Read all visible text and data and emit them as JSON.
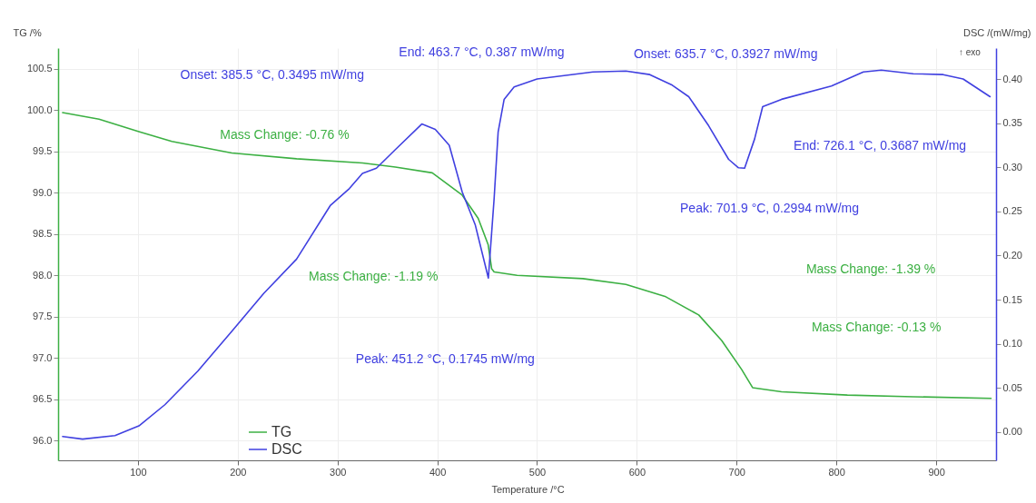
{
  "chart_data": {
    "type": "line",
    "xlabel": "Temperature /°C",
    "ylabel": "TG /%",
    "y2label": "DSC /(mW/mg)",
    "xlim": [
      20,
      960
    ],
    "xticks": [
      100,
      200,
      300,
      400,
      500,
      600,
      700,
      800,
      900
    ],
    "ylim": [
      95.76,
      100.75
    ],
    "yticks": [
      {
        "value": 96,
        "label": "96.0"
      },
      {
        "value": 96.5,
        "label": "96.5"
      },
      {
        "value": 97,
        "label": "97.0"
      },
      {
        "value": 97.5,
        "label": "97.5"
      },
      {
        "value": 98,
        "label": "98.0"
      },
      {
        "value": 98.5,
        "label": "98.5"
      },
      {
        "value": 99,
        "label": "99.0"
      },
      {
        "value": 99.5,
        "label": "99.5"
      },
      {
        "value": 100,
        "label": "100.0"
      },
      {
        "value": 100.5,
        "label": "100.5"
      }
    ],
    "y2lim": [
      -0.032,
      0.435
    ],
    "y2ticks": [
      {
        "value": 0,
        "label": "0.00"
      },
      {
        "value": 0.05,
        "label": "0.05"
      },
      {
        "value": 0.1,
        "label": "0.10"
      },
      {
        "value": 0.15,
        "label": "0.15"
      },
      {
        "value": 0.2,
        "label": "0.20"
      },
      {
        "value": 0.25,
        "label": "0.25"
      },
      {
        "value": 0.3,
        "label": "0.30"
      },
      {
        "value": 0.35,
        "label": "0.35"
      },
      {
        "value": 0.4,
        "label": "0.40"
      }
    ],
    "grid": true,
    "legend": "bottom left",
    "series": [
      {
        "name": "TG",
        "color": "#3cb043",
        "x": [
          24.5,
          61,
          101,
          134,
          194,
          259,
          325,
          358,
          395,
          425,
          441,
          451,
          454.5,
          457,
          480,
          546,
          589,
          629,
          662,
          685,
          705,
          716,
          745,
          811,
          877,
          955
        ],
        "values": [
          99.97,
          99.89,
          99.74,
          99.62,
          99.48,
          99.41,
          99.36,
          99.31,
          99.24,
          98.97,
          98.69,
          98.37,
          98.08,
          98.04,
          98.0,
          97.96,
          97.89,
          97.74,
          97.52,
          97.21,
          96.86,
          96.64,
          96.59,
          96.55,
          96.53,
          96.51
        ]
      },
      {
        "name": "DSC",
        "color": "#4040e0",
        "axis": "y2",
        "x": [
          24.5,
          44.5,
          77,
          101,
          127,
          160,
          194,
          226,
          259,
          293,
          312,
          325,
          339,
          358,
          384.5,
          398,
          412,
          425,
          438,
          451.2,
          457,
          461,
          467,
          477,
          500,
          556,
          589,
          613,
          635.5,
          652,
          672,
          692,
          701.9,
          708,
          718,
          726.1,
          745,
          795,
          827,
          845,
          877,
          907,
          927,
          954
        ],
        "values": [
          -0.005,
          -0.008,
          -0.004,
          0.007,
          0.031,
          0.069,
          0.114,
          0.157,
          0.196,
          0.257,
          0.276,
          0.293,
          0.299,
          0.32,
          0.349,
          0.343,
          0.325,
          0.272,
          0.235,
          0.1745,
          0.265,
          0.34,
          0.377,
          0.391,
          0.4,
          0.408,
          0.409,
          0.405,
          0.393,
          0.38,
          0.347,
          0.309,
          0.2994,
          0.299,
          0.332,
          0.3687,
          0.377,
          0.392,
          0.408,
          0.41,
          0.406,
          0.405,
          0.4,
          0.38
        ]
      }
    ],
    "annotations": [
      "Onset: 385.5 °C, 0.3495 mW/mg",
      "End: 463.7 °C, 0.387 mW/mg",
      "Onset: 635.7 °C, 0.3927 mW/mg",
      "End: 726.1 °C, 0.3687 mW/mg",
      "Peak: 701.9 °C, 0.2994 mW/mg",
      "Mass Change: -0.76 %",
      "Mass Change: -1.19 %",
      "Peak: 451.2 °C, 0.1745 mW/mg",
      "Mass Change: -1.39 %",
      "Mass Change: -0.13 %",
      "↑ exo"
    ]
  }
}
